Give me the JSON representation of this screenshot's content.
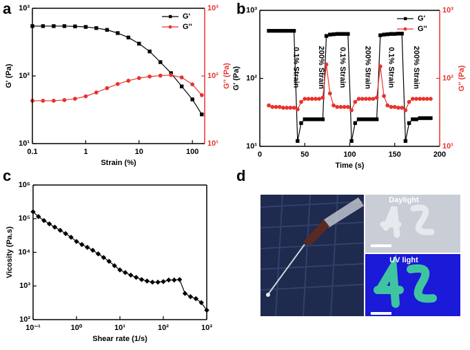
{
  "chart_data": [
    {
      "panel": "a",
      "type": "line",
      "x_label": "Strain (%)",
      "y_label": "G' (Pa)",
      "y2_label": "G'' (Pa)",
      "xscale": "log",
      "yscale": "log",
      "y2scale": "log",
      "legend": "upper right",
      "xlim": [
        0.1,
        170
      ],
      "ylim": [
        10,
        1000
      ],
      "y2lim": [
        10,
        1000
      ],
      "xticks": [
        0.1,
        1,
        10,
        100
      ],
      "yticks": [
        {
          "value": 10,
          "label": "10¹"
        },
        {
          "value": 100,
          "label": "10²"
        },
        {
          "value": 1000,
          "label": "10³"
        }
      ],
      "y2ticks": [
        {
          "value": 10,
          "label": "10¹"
        },
        {
          "value": 100,
          "label": "10²"
        },
        {
          "value": 1000,
          "label": "10³"
        }
      ],
      "x": [
        0.1,
        0.158,
        0.251,
        0.398,
        0.631,
        1,
        1.58,
        2.51,
        3.98,
        6.31,
        10,
        15.8,
        25.1,
        39.8,
        63.1,
        100,
        150
      ],
      "series": [
        {
          "name": "G'",
          "color": "#000000",
          "marker": "square",
          "values": [
            545,
            545,
            545,
            545,
            540,
            530,
            510,
            480,
            430,
            370,
            300,
            230,
            160,
            110,
            70,
            45,
            27
          ]
        },
        {
          "name": "G''",
          "color": "#e8332e",
          "marker": "circle",
          "axis": "y2",
          "values": [
            43,
            43,
            43,
            44,
            46,
            50,
            57,
            66,
            76,
            85,
            93,
            98,
            101,
            103,
            95,
            75,
            52
          ]
        }
      ]
    },
    {
      "panel": "b",
      "type": "line",
      "x_label": "Time (s)",
      "y_label": "G' (Pa)",
      "y2_label": "G'' (Pa)",
      "yscale": "log",
      "y2scale": "log",
      "legend": "upper right",
      "xlim": [
        0,
        200
      ],
      "ylim": [
        10,
        1000
      ],
      "y2lim": [
        10,
        1000
      ],
      "xticks": [
        0,
        50,
        100,
        150,
        200
      ],
      "yticks": [
        {
          "value": 10,
          "label": "10¹"
        },
        {
          "value": 100,
          "label": "10²"
        },
        {
          "value": 1000,
          "label": "10³"
        }
      ],
      "y2ticks": [
        {
          "value": 10,
          "label": "10¹"
        },
        {
          "value": 100,
          "label": "10²"
        },
        {
          "value": 1000,
          "label": "10³"
        }
      ],
      "annotations": [
        "0.1% Strain",
        "200% Strain",
        "0.1% Strain",
        "200% Strain",
        "0.1% Strain",
        "200% Strain"
      ],
      "x": [
        10,
        14,
        18,
        22,
        26,
        30,
        34,
        38,
        42,
        46,
        50,
        54,
        58,
        62,
        66,
        70,
        74,
        78,
        82,
        86,
        90,
        94,
        98,
        102,
        106,
        110,
        114,
        118,
        122,
        126,
        130,
        134,
        138,
        142,
        146,
        150,
        154,
        158,
        162,
        166,
        170,
        174,
        178,
        182,
        186,
        190
      ],
      "series": [
        {
          "name": "G'",
          "color": "#000000",
          "marker": "square",
          "values": [
            500,
            500,
            500,
            500,
            500,
            500,
            500,
            500,
            12,
            22,
            25,
            25,
            25,
            25,
            25,
            25,
            420,
            440,
            445,
            450,
            450,
            450,
            450,
            12,
            22,
            25,
            25,
            25,
            25,
            25,
            25,
            430,
            440,
            445,
            450,
            450,
            455,
            455,
            12,
            22,
            25,
            25,
            26,
            26,
            26,
            26
          ]
        },
        {
          "name": "G''",
          "color": "#e8332e",
          "marker": "circle",
          "axis": "y2",
          "values": [
            40,
            38,
            38,
            38,
            37,
            37,
            37,
            37,
            35,
            45,
            50,
            50,
            50,
            50,
            50,
            52,
            160,
            60,
            40,
            38,
            38,
            38,
            38,
            34,
            45,
            50,
            50,
            50,
            50,
            50,
            52,
            150,
            55,
            40,
            38,
            38,
            37,
            37,
            34,
            45,
            50,
            50,
            50,
            50,
            50,
            50
          ]
        }
      ]
    },
    {
      "panel": "c",
      "type": "line",
      "x_label": "Shear rate (1/s)",
      "y_label": "Vicosity (Pa.s)",
      "xscale": "log",
      "yscale": "log",
      "xlim": [
        0.1,
        1000
      ],
      "ylim": [
        100,
        1000000
      ],
      "xticks": [
        {
          "value": 0.1,
          "label": "10⁻¹"
        },
        {
          "value": 1,
          "label": "10⁰"
        },
        {
          "value": 10,
          "label": "10¹"
        },
        {
          "value": 100,
          "label": "10²"
        },
        {
          "value": 1000,
          "label": "10³"
        }
      ],
      "yticks": [
        {
          "value": 100,
          "label": "10²"
        },
        {
          "value": 1000,
          "label": "10³"
        },
        {
          "value": 10000,
          "label": "10⁴"
        },
        {
          "value": 100000,
          "label": "10⁵"
        },
        {
          "value": 1000000,
          "label": "10⁶"
        }
      ],
      "x": [
        0.1,
        0.133,
        0.178,
        0.237,
        0.316,
        0.422,
        0.562,
        0.75,
        1,
        1.33,
        1.78,
        2.37,
        3.16,
        4.22,
        5.62,
        7.5,
        10,
        13.3,
        17.8,
        23.7,
        31.6,
        42.2,
        56.2,
        75,
        100,
        133,
        178,
        237,
        316,
        422,
        562,
        750,
        1000
      ],
      "series": [
        {
          "color": "#000000",
          "marker": "diamond",
          "values": [
            160000,
            115000,
            88000,
            70000,
            56000,
            45000,
            36000,
            28000,
            21000,
            17000,
            14000,
            11500,
            9000,
            7000,
            5400,
            4000,
            3000,
            2500,
            2100,
            1800,
            1550,
            1400,
            1300,
            1300,
            1350,
            1500,
            1500,
            1550,
            600,
            480,
            420,
            320,
            190
          ]
        }
      ]
    }
  ],
  "photo": {
    "panel": "d",
    "labels": [
      "Daylight",
      "UV light"
    ]
  }
}
